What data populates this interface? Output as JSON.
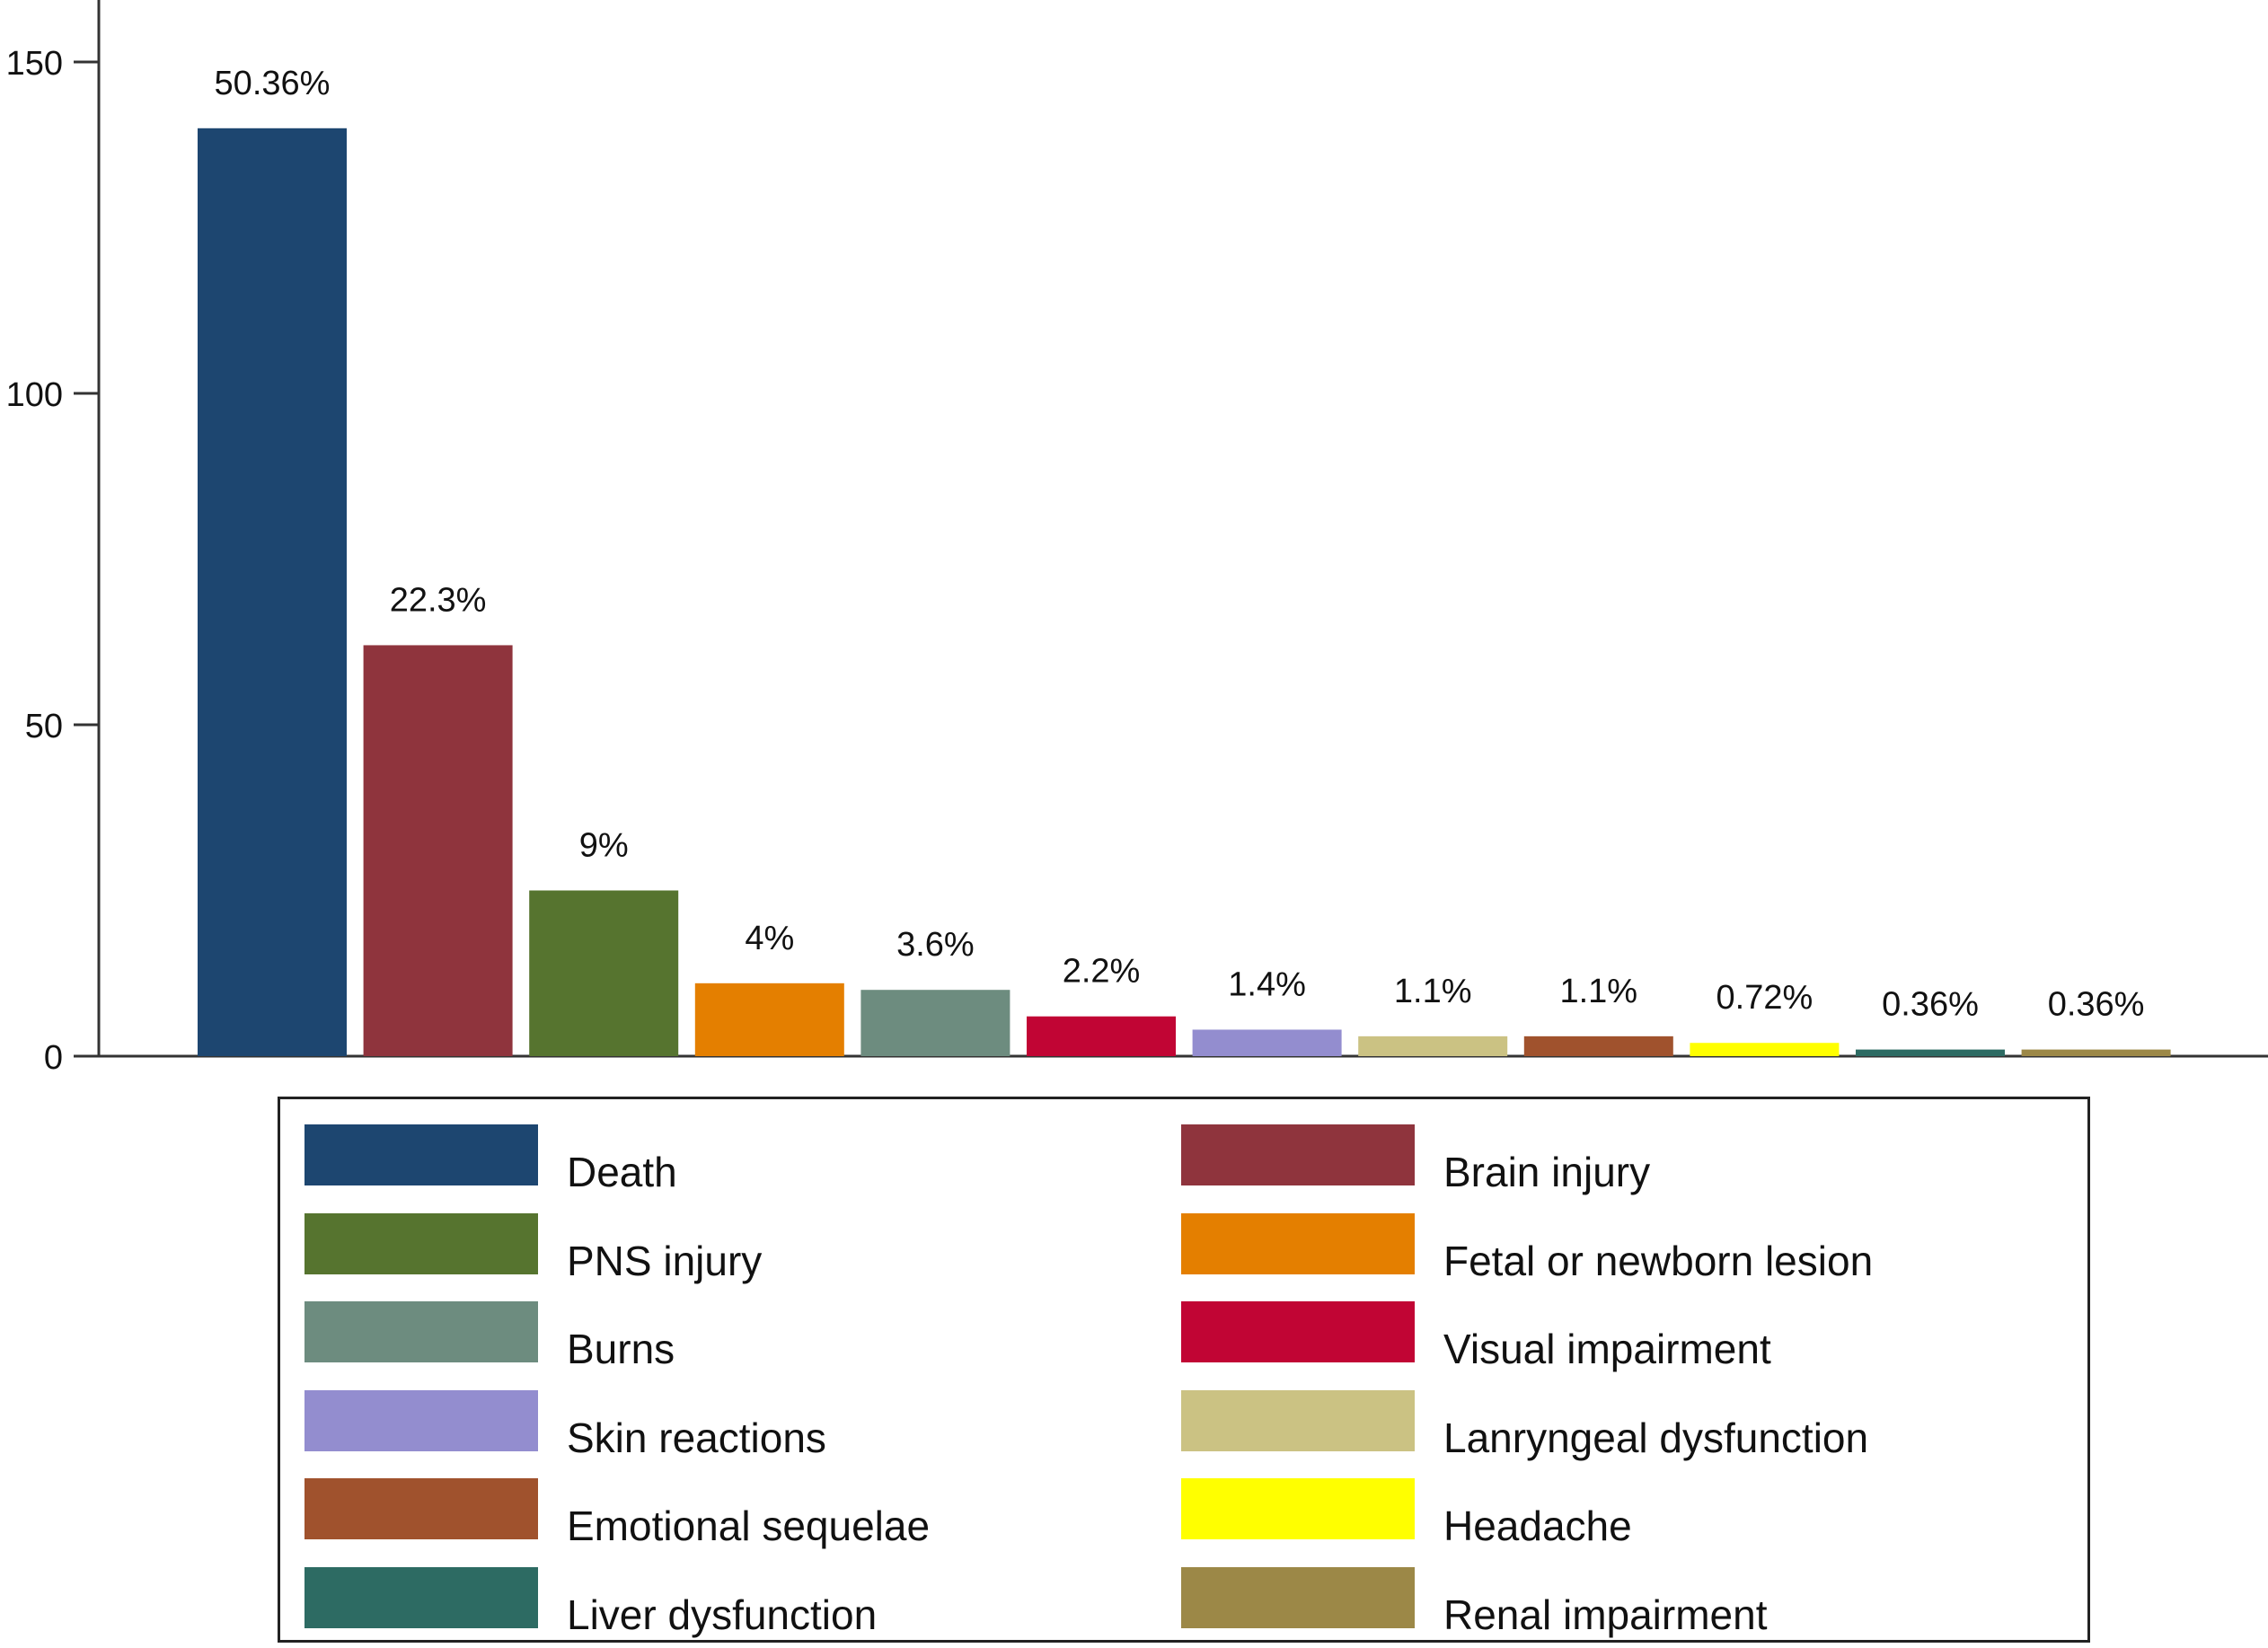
{
  "chart_data": {
    "type": "bar",
    "title": "",
    "xlabel": "",
    "ylabel": "",
    "ylim": [
      0,
      160
    ],
    "yticks": [
      0,
      50,
      100,
      150
    ],
    "grid": false,
    "legend_position": "bottom",
    "categories": [
      "Death",
      "Brain injury",
      "PNS injury",
      "Fetal or newborn lesion",
      "Burns",
      "Visual impairment",
      "Skin reactions",
      "Lanryngeal dysfunction",
      "Emotional sequelae",
      "Headache",
      "Liver dysfunction",
      "Renal impairment"
    ],
    "values": [
      140,
      62,
      25,
      11,
      10,
      6,
      4,
      3,
      3,
      2,
      1,
      1
    ],
    "data_labels": [
      "50.36%",
      "22.3%",
      "9%",
      "4%",
      "3.6%",
      "2.2%",
      "1.4%",
      "1.1%",
      "1.1%",
      "0.72%",
      "0.36%",
      "0.36%"
    ],
    "colors": [
      "#1d4670",
      "#8f343d",
      "#56742f",
      "#e47f00",
      "#6d8c7f",
      "#c10534",
      "#938dcf",
      "#cbc283",
      "#a0522d",
      "#ffff00",
      "#2d6b63",
      "#9c8847"
    ]
  },
  "legend": {
    "items": [
      {
        "label": "Death",
        "color": "#1d4670"
      },
      {
        "label": "Brain injury",
        "color": "#8f343d"
      },
      {
        "label": "PNS injury",
        "color": "#56742f"
      },
      {
        "label": "Fetal or newborn lesion",
        "color": "#e47f00"
      },
      {
        "label": "Burns",
        "color": "#6d8c7f"
      },
      {
        "label": "Visual impairment",
        "color": "#c10534"
      },
      {
        "label": "Skin reactions",
        "color": "#938dcf"
      },
      {
        "label": "Lanryngeal dysfunction",
        "color": "#cbc283"
      },
      {
        "label": "Emotional sequelae",
        "color": "#a0522d"
      },
      {
        "label": "Headache",
        "color": "#ffff00"
      },
      {
        "label": "Liver dysfunction",
        "color": "#2d6b63"
      },
      {
        "label": "Renal impairment",
        "color": "#9c8847"
      }
    ]
  }
}
